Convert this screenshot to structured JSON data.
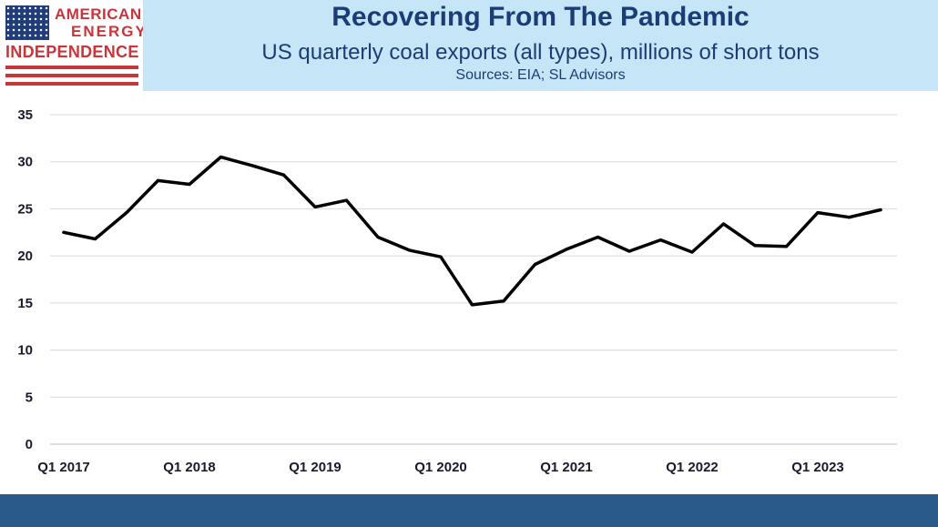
{
  "header": {
    "logo": {
      "line1": "AMERICAN",
      "line2": "ENERGY",
      "line3": "INDEPENDENCE",
      "flag_color": "#1f3d7a",
      "text_color": "#c8353a"
    },
    "title": "Recovering From The Pandemic",
    "subtitle": "US quarterly coal exports (all types), millions of short tons",
    "sources": "Sources: EIA; SL Advisors",
    "band_color": "#c6e6f7",
    "text_color": "#1c3c78"
  },
  "footer": {
    "bar_color": "#2a5a8a"
  },
  "chart_data": {
    "type": "line",
    "title": "Recovering From The Pandemic",
    "subtitle": "US quarterly coal exports (all types), millions of short tons",
    "xlabel": "",
    "ylabel": "",
    "ylim": [
      0,
      35
    ],
    "yticks": [
      0,
      5,
      10,
      15,
      20,
      25,
      30,
      35
    ],
    "grid": true,
    "legend": "none",
    "line_color": "#000000",
    "categories": [
      "Q1 2017",
      "Q2 2017",
      "Q3 2017",
      "Q4 2017",
      "Q1 2018",
      "Q2 2018",
      "Q3 2018",
      "Q4 2018",
      "Q1 2019",
      "Q2 2019",
      "Q3 2019",
      "Q4 2019",
      "Q1 2020",
      "Q2 2020",
      "Q3 2020",
      "Q4 2020",
      "Q1 2021",
      "Q2 2021",
      "Q3 2021",
      "Q4 2021",
      "Q1 2022",
      "Q2 2022",
      "Q3 2022",
      "Q4 2022",
      "Q1 2023",
      "Q2 2023",
      "Q3 2023"
    ],
    "x_tick_labels": [
      "Q1 2017",
      "Q1 2018",
      "Q1 2019",
      "Q1 2020",
      "Q1 2021",
      "Q1 2022",
      "Q1 2023"
    ],
    "series": [
      {
        "values": [
          22.5,
          21.8,
          24.6,
          28.0,
          27.6,
          30.5,
          29.6,
          28.6,
          25.2,
          25.9,
          22.0,
          20.6,
          19.9,
          14.8,
          15.2,
          19.1,
          20.7,
          22.0,
          20.5,
          21.7,
          20.4,
          23.4,
          21.1,
          21.0,
          24.6,
          24.1,
          24.9
        ]
      }
    ]
  }
}
